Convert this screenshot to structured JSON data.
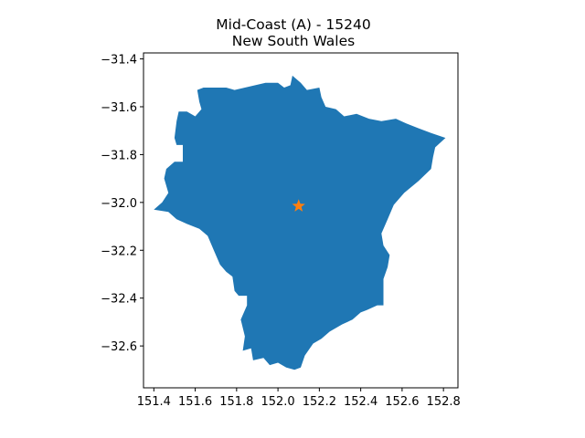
{
  "title": {
    "line1": "Mid-Coast (A) - 15240",
    "line2": "New South Wales"
  },
  "colors": {
    "region_fill": "#1f77b4",
    "marker_fill": "#ff7f0e",
    "axis": "#000000",
    "background": "#ffffff"
  },
  "chart_data": {
    "type": "map",
    "xlim": [
      151.35,
      152.87
    ],
    "ylim": [
      -32.775,
      -31.375
    ],
    "x_ticks": [
      151.4,
      151.6,
      151.8,
      152.0,
      152.2,
      152.4,
      152.6,
      152.8
    ],
    "x_tick_labels": [
      "151.4",
      "151.6",
      "151.8",
      "152.0",
      "152.2",
      "152.4",
      "152.6",
      "152.8"
    ],
    "y_ticks": [
      -31.4,
      -31.6,
      -31.8,
      -32.0,
      -32.2,
      -32.4,
      -32.6
    ],
    "y_tick_labels": [
      "−31.4",
      "−31.6",
      "−31.8",
      "−32.0",
      "−32.2",
      "−32.4",
      "−32.6"
    ],
    "region_outline": [
      [
        152.07,
        -31.47
      ],
      [
        152.06,
        -31.51
      ],
      [
        152.03,
        -31.52
      ],
      [
        152.0,
        -31.5
      ],
      [
        151.94,
        -31.5
      ],
      [
        151.89,
        -31.51
      ],
      [
        151.84,
        -31.52
      ],
      [
        151.79,
        -31.53
      ],
      [
        151.75,
        -31.52
      ],
      [
        151.7,
        -31.52
      ],
      [
        151.64,
        -31.52
      ],
      [
        151.61,
        -31.53
      ],
      [
        151.62,
        -31.58
      ],
      [
        151.63,
        -31.61
      ],
      [
        151.6,
        -31.64
      ],
      [
        151.56,
        -31.62
      ],
      [
        151.52,
        -31.62
      ],
      [
        151.51,
        -31.66
      ],
      [
        151.5,
        -31.73
      ],
      [
        151.51,
        -31.76
      ],
      [
        151.54,
        -31.76
      ],
      [
        151.54,
        -31.83
      ],
      [
        151.5,
        -31.83
      ],
      [
        151.46,
        -31.86
      ],
      [
        151.45,
        -31.9
      ],
      [
        151.47,
        -31.96
      ],
      [
        151.44,
        -32.0
      ],
      [
        151.4,
        -32.03
      ],
      [
        151.47,
        -32.04
      ],
      [
        151.51,
        -32.07
      ],
      [
        151.56,
        -32.09
      ],
      [
        151.62,
        -32.11
      ],
      [
        151.66,
        -32.14
      ],
      [
        151.69,
        -32.2
      ],
      [
        151.72,
        -32.26
      ],
      [
        151.75,
        -32.29
      ],
      [
        151.78,
        -32.31
      ],
      [
        151.79,
        -32.37
      ],
      [
        151.81,
        -32.39
      ],
      [
        151.85,
        -32.39
      ],
      [
        151.85,
        -32.43
      ],
      [
        151.82,
        -32.49
      ],
      [
        151.84,
        -32.56
      ],
      [
        151.83,
        -32.62
      ],
      [
        151.87,
        -32.61
      ],
      [
        151.88,
        -32.66
      ],
      [
        151.93,
        -32.65
      ],
      [
        151.96,
        -32.68
      ],
      [
        152.0,
        -32.67
      ],
      [
        152.04,
        -32.69
      ],
      [
        152.08,
        -32.7
      ],
      [
        152.11,
        -32.69
      ],
      [
        152.13,
        -32.64
      ],
      [
        152.17,
        -32.59
      ],
      [
        152.21,
        -32.57
      ],
      [
        152.25,
        -32.54
      ],
      [
        152.31,
        -32.51
      ],
      [
        152.36,
        -32.49
      ],
      [
        152.4,
        -32.46
      ],
      [
        152.43,
        -32.45
      ],
      [
        152.48,
        -32.43
      ],
      [
        152.51,
        -32.43
      ],
      [
        152.51,
        -32.37
      ],
      [
        152.51,
        -32.32
      ],
      [
        152.53,
        -32.27
      ],
      [
        152.54,
        -32.22
      ],
      [
        152.51,
        -32.18
      ],
      [
        152.5,
        -32.13
      ],
      [
        152.53,
        -32.07
      ],
      [
        152.56,
        -32.01
      ],
      [
        152.61,
        -31.96
      ],
      [
        152.68,
        -31.91
      ],
      [
        152.74,
        -31.86
      ],
      [
        152.75,
        -31.81
      ],
      [
        152.76,
        -31.77
      ],
      [
        152.81,
        -31.73
      ],
      [
        152.74,
        -31.71
      ],
      [
        152.68,
        -31.69
      ],
      [
        152.62,
        -31.67
      ],
      [
        152.57,
        -31.65
      ],
      [
        152.5,
        -31.66
      ],
      [
        152.44,
        -31.65
      ],
      [
        152.38,
        -31.63
      ],
      [
        152.32,
        -31.64
      ],
      [
        152.28,
        -31.61
      ],
      [
        152.23,
        -31.6
      ],
      [
        152.21,
        -31.56
      ],
      [
        152.2,
        -31.52
      ],
      [
        152.14,
        -31.53
      ],
      [
        152.11,
        -31.5
      ],
      [
        152.07,
        -31.47
      ]
    ],
    "marker": {
      "shape": "star",
      "x": 152.1,
      "y": -32.015
    }
  }
}
